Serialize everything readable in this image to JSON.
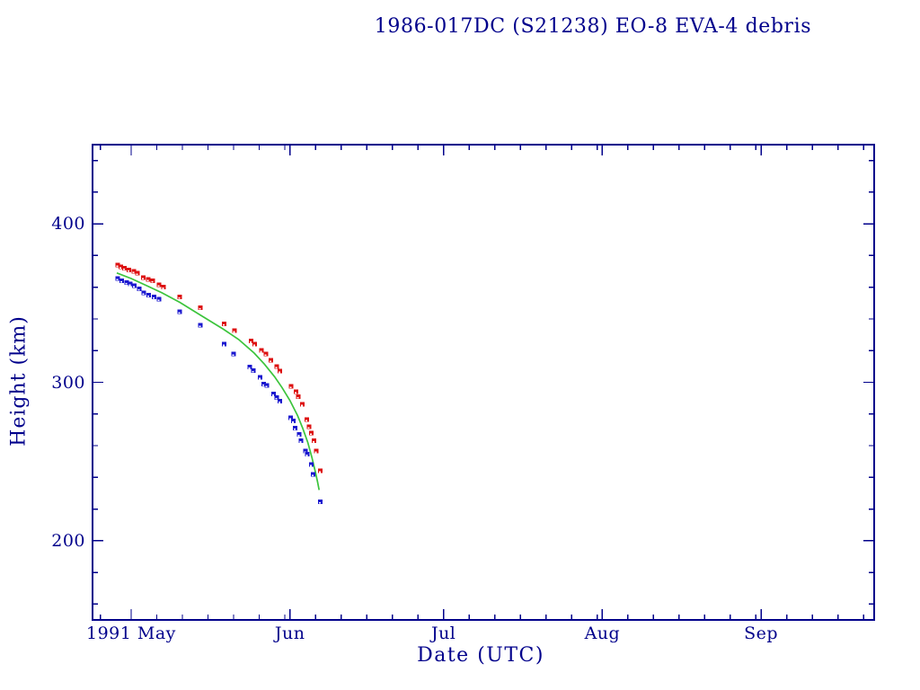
{
  "page": {
    "background": "#ffffff"
  },
  "chart_data": {
    "type": "scatter",
    "title": "1986-017DC (S21238) EO-8 EVA-4 debris",
    "xlabel": "Date (UTC)",
    "ylabel": "Height (km)",
    "axis_color": "#00008b",
    "text_color": "#00008b",
    "grid": false,
    "legend": "none",
    "x_unit": "days since 1991 May 1",
    "xlim": [
      -7.54,
      145.09
    ],
    "ylim": [
      150,
      450
    ],
    "x_major_ticks": [
      {
        "day": 0,
        "label": "1991 May"
      },
      {
        "day": 31,
        "label": "Jun"
      },
      {
        "day": 61,
        "label": "Jul"
      },
      {
        "day": 92,
        "label": "Aug"
      },
      {
        "day": 123,
        "label": "Sep"
      }
    ],
    "x_minor_tick_days": [
      -6,
      5,
      10,
      15,
      20,
      25,
      30,
      36,
      41,
      46,
      51,
      56,
      66,
      71,
      76,
      81,
      86,
      91,
      97,
      102,
      107,
      112,
      117,
      122,
      128,
      133,
      138,
      143
    ],
    "y_major_ticks": [
      200,
      300,
      400
    ],
    "y_minor_ticks": [
      160,
      180,
      220,
      240,
      260,
      280,
      320,
      340,
      360,
      380,
      420,
      440
    ],
    "series": [
      {
        "name": "fit-line",
        "kind": "line",
        "color": "#3cc43c",
        "points": [
          [
            -2.8,
            369
          ],
          [
            0,
            365.5
          ],
          [
            3,
            361
          ],
          [
            6,
            356.5
          ],
          [
            9.5,
            350.5
          ],
          [
            13.5,
            342.5
          ],
          [
            18,
            333.5
          ],
          [
            21,
            327
          ],
          [
            24,
            318.5
          ],
          [
            26,
            311.5
          ],
          [
            28,
            303.5
          ],
          [
            29.5,
            296.5
          ],
          [
            31,
            288.5
          ],
          [
            32.5,
            279
          ],
          [
            33.5,
            271
          ],
          [
            34.5,
            262
          ],
          [
            35.3,
            252.5
          ],
          [
            36.0,
            243
          ],
          [
            36.4,
            237
          ],
          [
            36.7,
            232
          ]
        ]
      },
      {
        "name": "perigee-height",
        "kind": "scatter",
        "color": "#1a17cf",
        "marker": "square",
        "points": [
          [
            -2.6,
            365.5
          ],
          [
            -1.8,
            364
          ],
          [
            -0.9,
            363
          ],
          [
            -0.2,
            362
          ],
          [
            0.6,
            361
          ],
          [
            1.6,
            359
          ],
          [
            2.5,
            356.5
          ],
          [
            3.4,
            355
          ],
          [
            4.5,
            354
          ],
          [
            5.4,
            352.5
          ],
          [
            9.5,
            344.5
          ],
          [
            13.5,
            336
          ],
          [
            18.2,
            324
          ],
          [
            20.0,
            318
          ],
          [
            23.2,
            309.5
          ],
          [
            23.9,
            307.5
          ],
          [
            25.2,
            303
          ],
          [
            25.9,
            299
          ],
          [
            26.5,
            298
          ],
          [
            27.8,
            292.5
          ],
          [
            28.4,
            290.5
          ],
          [
            29.0,
            288
          ],
          [
            31.1,
            277.5
          ],
          [
            31.7,
            275.5
          ],
          [
            32.0,
            271
          ],
          [
            32.8,
            267
          ],
          [
            33.2,
            263
          ],
          [
            34.0,
            256.5
          ],
          [
            34.4,
            254.5
          ],
          [
            35.2,
            248
          ],
          [
            35.5,
            242
          ],
          [
            36.9,
            224.5
          ]
        ]
      },
      {
        "name": "apogee-height",
        "kind": "scatter",
        "color": "#dd1111",
        "marker": "square",
        "points": [
          [
            -2.6,
            374
          ],
          [
            -2.0,
            373
          ],
          [
            -1.3,
            372
          ],
          [
            -0.4,
            371
          ],
          [
            0.5,
            370
          ],
          [
            1.2,
            369
          ],
          [
            2.4,
            366
          ],
          [
            3.3,
            365
          ],
          [
            4.2,
            364
          ],
          [
            5.4,
            361.5
          ],
          [
            6.3,
            360
          ],
          [
            9.5,
            354
          ],
          [
            13.5,
            347
          ],
          [
            18.2,
            337
          ],
          [
            20.2,
            332.5
          ],
          [
            23.4,
            326
          ],
          [
            24.1,
            324
          ],
          [
            25.4,
            320
          ],
          [
            26.3,
            318
          ],
          [
            27.3,
            314
          ],
          [
            28.4,
            310
          ],
          [
            29.0,
            307
          ],
          [
            31.2,
            297.5
          ],
          [
            32.2,
            294
          ],
          [
            32.6,
            291
          ],
          [
            33.4,
            286
          ],
          [
            34.3,
            276.5
          ],
          [
            34.7,
            272
          ],
          [
            35.2,
            268
          ],
          [
            35.7,
            263
          ],
          [
            36.1,
            256.5
          ],
          [
            36.9,
            244
          ]
        ]
      }
    ]
  }
}
